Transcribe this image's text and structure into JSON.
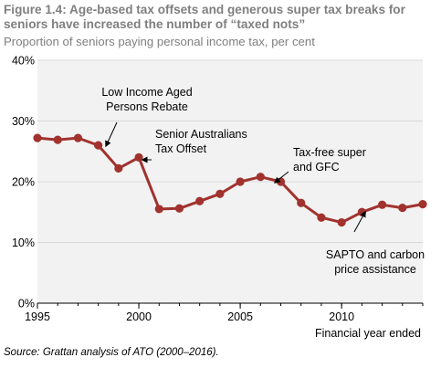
{
  "figure": {
    "title": "Figure 1.4: Age-based tax offsets and generous super tax breaks for seniors have increased the number of “taxed nots”",
    "subtitle": "Proportion of seniors paying personal income tax, per cent",
    "source": "Source: Grattan analysis of ATO (2000–2016)."
  },
  "colors": {
    "series": "#a1322e",
    "axis": "#000000",
    "grid": "#d9d9d9",
    "plot_background": "#f2f2f2",
    "title": "#7f7f7f"
  },
  "chart_data": {
    "type": "line",
    "title": "Figure 1.4: Age-based tax offsets and generous super tax breaks for seniors have increased the number of “taxed nots”",
    "subtitle": "Proportion of seniors paying personal income tax, per cent",
    "xlabel": "Financial year ended",
    "ylabel": "",
    "xlim": [
      1995,
      2014
    ],
    "ylim": [
      0,
      40
    ],
    "x_ticks": [
      1995,
      2000,
      2005,
      2010
    ],
    "x_tick_labels": [
      "1995",
      "2000",
      "2005",
      "2010"
    ],
    "y_ticks": [
      0,
      10,
      20,
      30,
      40
    ],
    "y_tick_labels": [
      "0%",
      "10%",
      "20%",
      "30%",
      "40%"
    ],
    "grid": "horizontal",
    "legend": "none",
    "series": [
      {
        "x": [
          1995,
          1996,
          1997,
          1998,
          1999,
          2000,
          2001,
          2002,
          2003,
          2004,
          2005,
          2006,
          2007,
          2008,
          2009,
          2010,
          2011,
          2012,
          2013,
          2014
        ],
        "values": [
          27.2,
          26.9,
          27.2,
          26.0,
          22.2,
          24.0,
          15.5,
          15.6,
          16.8,
          18.0,
          20.0,
          20.8,
          20.0,
          16.5,
          14.1,
          13.3,
          15.0,
          16.2,
          15.7,
          16.3
        ],
        "marker": "circle",
        "color": "#a1322e"
      }
    ],
    "annotations": [
      {
        "lines": [
          "Low Income Aged",
          "Persons Rebate"
        ],
        "x": 1998,
        "y": 26.0
      },
      {
        "lines": [
          "Senior Australians",
          "Tax Offset"
        ],
        "x": 2000,
        "y": 24.0
      },
      {
        "lines": [
          "Tax-free super",
          "and GFC"
        ],
        "x": 2007,
        "y": 20.0
      },
      {
        "lines": [
          "SAPTO and carbon",
          "price assistance"
        ],
        "x": 2012,
        "y": 16.2
      }
    ],
    "source": "Source: Grattan analysis of ATO (2000–2016)."
  }
}
